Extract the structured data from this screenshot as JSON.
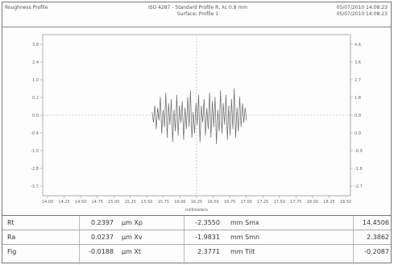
{
  "header": {
    "left_text": "Roughness Profile",
    "center_line1": "ISO 4287 - Standard  Profile R, λc 0.8 mm",
    "center_line2": "Surface: Profile 1",
    "right_line1": "05/07/2010 14:08:23",
    "right_line2": "05/07/2010 14:08:23"
  },
  "chart_data": {
    "type": "line",
    "xlabel": "millimeters",
    "x_tick_labels": [
      "14.00",
      "14.25",
      "14.50",
      "14.75",
      "15.00",
      "15.25",
      "15.50",
      "15.75",
      "16.00",
      "16.25",
      "16.50",
      "16.75",
      "17.00",
      "17.25",
      "17.50",
      "17.75",
      "18.00",
      "18.25",
      "18.50"
    ],
    "y_left_tick_labels": [
      "3.8",
      "2.4",
      "1.0",
      "0.2",
      "0.0",
      "-0.4",
      "-1.0",
      "-2.8",
      "-3.7"
    ],
    "y_right_tick_labels": [
      "4.6",
      "3.6",
      "2.7",
      "1.8",
      "0.9",
      "0.0",
      "-0.9",
      "-1.8",
      "-2.7"
    ],
    "xlim": [
      14.0,
      18.5
    ],
    "ylim": [
      -3.7,
      3.8
    ],
    "series": [
      {
        "x": [
          15.6,
          15.62,
          15.64,
          15.66,
          15.68,
          15.7,
          15.72,
          15.74,
          15.76,
          15.78,
          15.8,
          15.82,
          15.84,
          15.86,
          15.88,
          15.9,
          15.92,
          15.94,
          15.96,
          15.98,
          16.0,
          16.02,
          16.04,
          16.06,
          16.08,
          16.1,
          16.12,
          16.14,
          16.16,
          16.18,
          16.2,
          16.22,
          16.24,
          16.26,
          16.28,
          16.3,
          16.32,
          16.34,
          16.36,
          16.38,
          16.4,
          16.42,
          16.44,
          16.46,
          16.48,
          16.5,
          16.52,
          16.54,
          16.56,
          16.58,
          16.6,
          16.62,
          16.64,
          16.66,
          16.68,
          16.7,
          16.72,
          16.74,
          16.76,
          16.78,
          16.8,
          16.82,
          16.84,
          16.86,
          16.88,
          16.9,
          16.92,
          16.94,
          16.96,
          16.98
        ],
        "y": [
          0.2,
          -0.3,
          0.5,
          -0.6,
          0.4,
          -0.2,
          0.9,
          -0.8,
          0.3,
          -0.5,
          1.1,
          -1.0,
          0.6,
          -0.4,
          0.8,
          -1.2,
          0.3,
          -0.7,
          1.0,
          -0.9,
          0.5,
          -0.3,
          0.7,
          -1.1,
          0.4,
          -0.6,
          0.9,
          -0.5,
          1.2,
          -1.0,
          0.2,
          -0.8,
          0.6,
          -0.4,
          1.0,
          -1.2,
          0.5,
          -0.3,
          0.8,
          -0.9,
          0.4,
          -0.6,
          1.1,
          -1.0,
          0.7,
          -0.5,
          0.9,
          -1.3,
          0.3,
          -0.7,
          1.2,
          -0.8,
          0.6,
          -0.4,
          1.0,
          -1.1,
          0.5,
          -0.9,
          0.8,
          -0.6,
          1.3,
          -1.0,
          0.4,
          -0.7,
          0.9,
          -0.5,
          0.6,
          -0.3,
          0.4,
          -0.2
        ]
      }
    ]
  },
  "stats": [
    {
      "label": "Rt",
      "value": "0.2397",
      "unit": "µm Xp",
      "value2": "-2.3550",
      "unit2": "mm Smx",
      "value3": "14.4506"
    },
    {
      "label": "Ra",
      "value": "0.0237",
      "unit": "µm Xv",
      "value2": "-1.9831",
      "unit2": "mm Smn",
      "value3": "2.3862"
    },
    {
      "label": "Fig",
      "value": "-0.0188",
      "unit": "µm Xt",
      "value2": "2.3771",
      "unit2": "mm Tilt",
      "value3": "-0.2087"
    }
  ]
}
